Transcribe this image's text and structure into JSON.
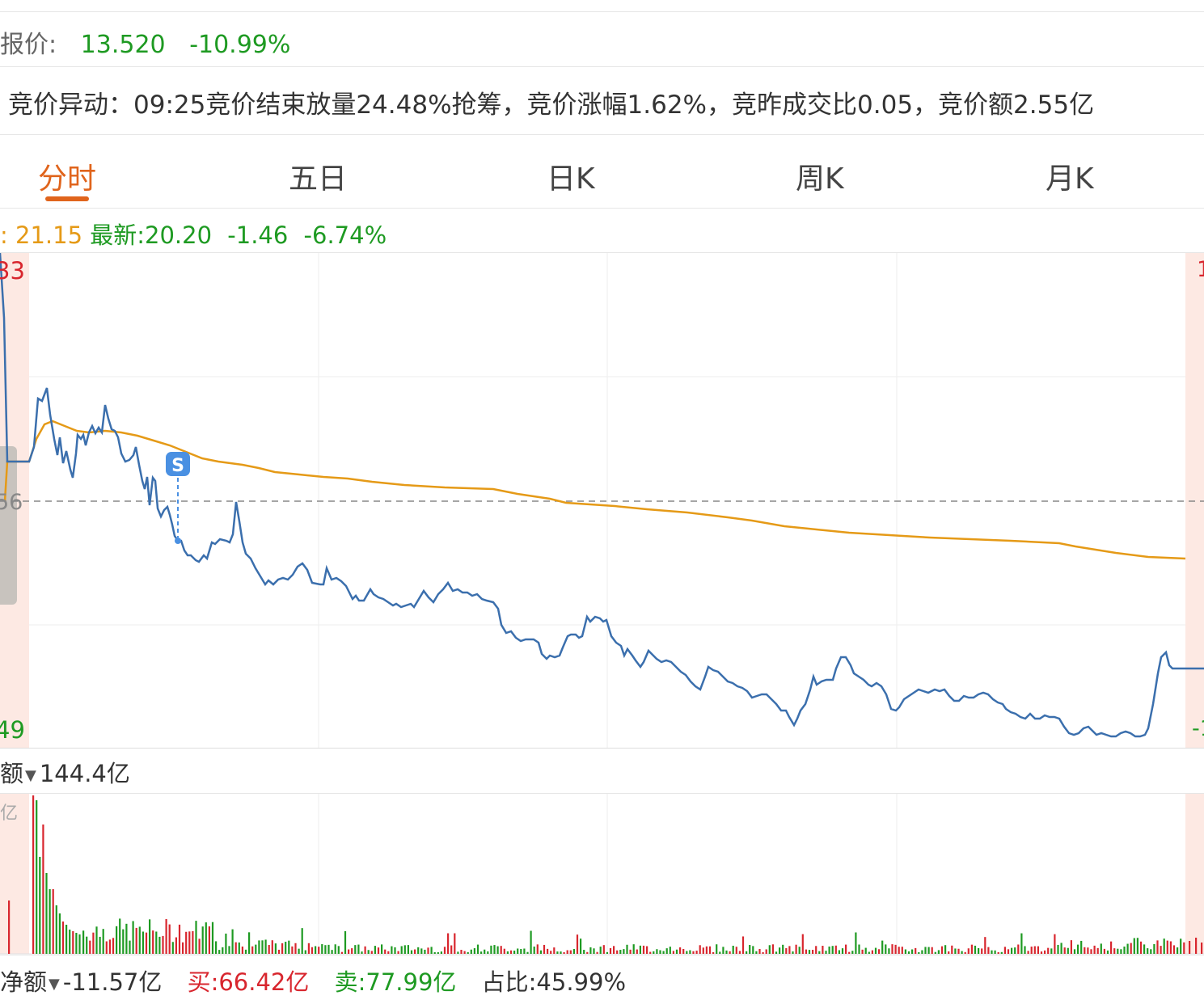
{
  "quote": {
    "label": "报价:",
    "price": "13.520",
    "change_pct": "-10.99%"
  },
  "auction": {
    "text": "竞价异动：09:25竞价结束放量24.48%抢筹，竞价涨幅1.62%，竞昨成交比0.05，竞价额2.55亿"
  },
  "tabs": [
    {
      "label": "分时",
      "active": true
    },
    {
      "label": "五日"
    },
    {
      "label": "日K"
    },
    {
      "label": "周K"
    },
    {
      "label": "月K"
    }
  ],
  "info": {
    "avg_prefix": ": ",
    "avg_value": "21.15",
    "latest_label": "最新:",
    "latest_value": "20.20",
    "change": "-1.46",
    "change_pct": "-6.74%"
  },
  "chart": {
    "left_top_label": "33",
    "left_mid_label": "56",
    "left_bottom_label": "49",
    "right_top_label": "1",
    "right_bottom_label": "-1",
    "signal_marker": "S"
  },
  "volume": {
    "metric_label": "额",
    "total": "144.4亿",
    "axis_unit": "亿"
  },
  "net_flow": {
    "metric_label": "净额",
    "net": "-11.57亿",
    "buy_label": "买:",
    "buy": "66.42亿",
    "sell_label": "卖:",
    "sell": "77.99亿",
    "ratio_label": "占比:",
    "ratio": "45.99%"
  },
  "colors": {
    "accent": "#e0641c",
    "price_line": "#3b6fad",
    "avg_line": "#e59a17",
    "up": "#d8262e",
    "down": "#1e9a22"
  }
}
